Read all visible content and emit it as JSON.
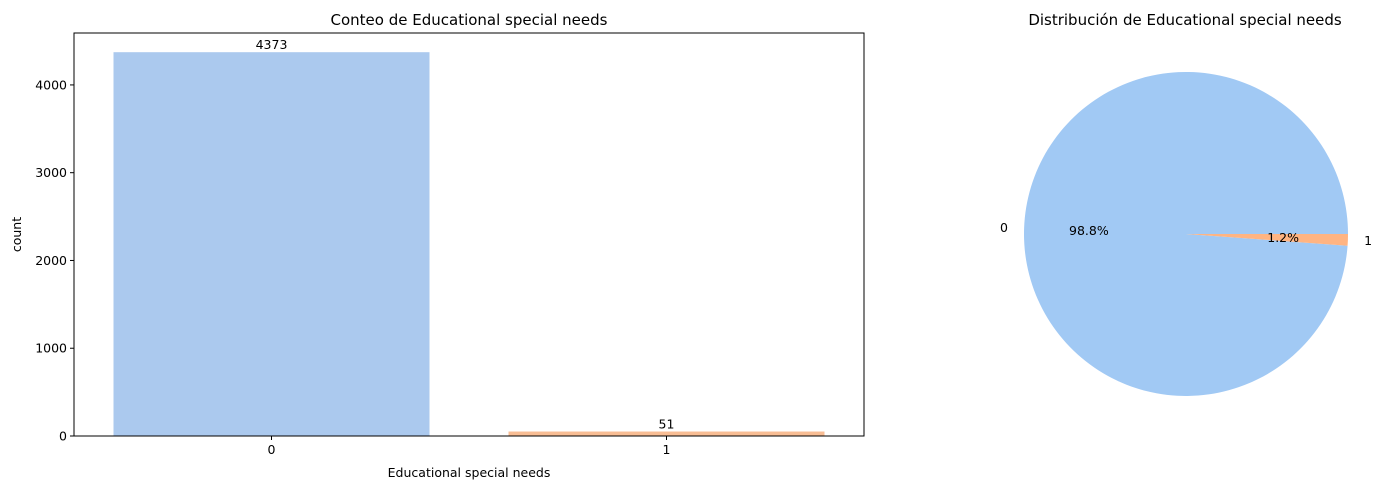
{
  "chart_data": [
    {
      "type": "bar",
      "title": "Conteo de Educational special needs",
      "xlabel": "Educational special needs",
      "ylabel": "count",
      "categories": [
        "0",
        "1"
      ],
      "values": [
        4373,
        51
      ],
      "data_labels": [
        "4373",
        "51"
      ],
      "yticks": [
        0,
        1000,
        2000,
        3000,
        4000
      ],
      "ytick_labels": [
        "0",
        "1000",
        "2000",
        "3000",
        "4000"
      ],
      "ylim": [
        0,
        4591.65
      ],
      "colors": [
        "#abc9ee",
        "#f8bd94"
      ],
      "grid": false
    },
    {
      "type": "pie",
      "title": "Distribución de Educational special needs",
      "labels": [
        "0",
        "1"
      ],
      "values": [
        4373,
        51
      ],
      "percent_labels": [
        "98.8%",
        "1.2%"
      ],
      "colors": [
        "#a1c9f4",
        "#ffb482"
      ],
      "start_angle_deg": 0,
      "direction": "counterclockwise"
    }
  ]
}
